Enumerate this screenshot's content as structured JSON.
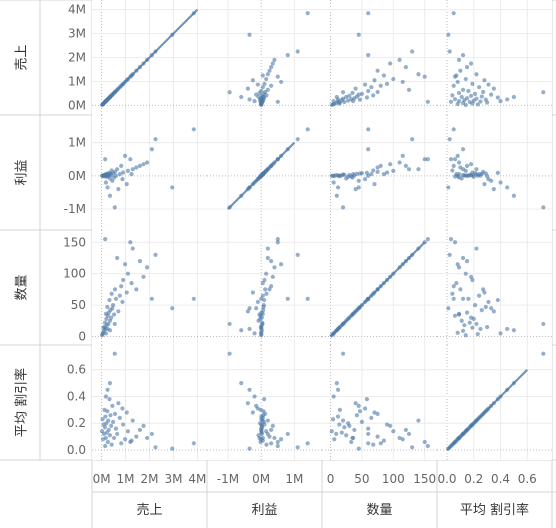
{
  "chart_data": {
    "type": "scatter",
    "subtype": "scatter-matrix",
    "title": "",
    "fields": [
      {
        "label": "売上",
        "ticks": [
          {
            "v": 0,
            "t": "0M"
          },
          {
            "v": 1000000,
            "t": "1M"
          },
          {
            "v": 2000000,
            "t": "2M"
          },
          {
            "v": 3000000,
            "t": "3M"
          },
          {
            "v": 4000000,
            "t": "4M"
          }
        ],
        "range": [
          -150000,
          4150000
        ]
      },
      {
        "label": "利益",
        "ticks": [
          {
            "v": -1000000,
            "t": "-1M"
          },
          {
            "v": 0,
            "t": "0M"
          },
          {
            "v": 1000000,
            "t": "1M"
          }
        ],
        "range": [
          -1450000,
          1650000
        ]
      },
      {
        "label": "数量",
        "ticks": [
          {
            "v": 0,
            "t": "0"
          },
          {
            "v": 50,
            "t": "50"
          },
          {
            "v": 100,
            "t": "100"
          },
          {
            "v": 150,
            "t": "150"
          }
        ],
        "range": [
          -4,
          160
        ]
      },
      {
        "label": "平均 割引率",
        "ticks": [
          {
            "v": 0.0,
            "t": "0.0"
          },
          {
            "v": 0.2,
            "t": "0.2"
          },
          {
            "v": 0.4,
            "t": "0.4"
          },
          {
            "v": 0.6,
            "t": "0.6"
          }
        ],
        "range": [
          -0.03,
          0.74
        ]
      }
    ],
    "points": [
      [
        3850000,
        1400000,
        60,
        0.05
      ],
      [
        2950000,
        -350000,
        45,
        0.01
      ],
      [
        2250000,
        1100000,
        130,
        0.02
      ],
      [
        2100000,
        800000,
        60,
        0.12
      ],
      [
        1900000,
        400000,
        110,
        0.09
      ],
      [
        1750000,
        350000,
        95,
        0.18
      ],
      [
        1600000,
        300000,
        120,
        0.15
      ],
      [
        1450000,
        250000,
        75,
        0.1
      ],
      [
        1300000,
        200000,
        140,
        0.22
      ],
      [
        1250000,
        50000,
        85,
        0.07
      ],
      [
        1100000,
        150000,
        100,
        0.14
      ],
      [
        1050000,
        -250000,
        70,
        0.28
      ],
      [
        980000,
        600000,
        115,
        0.08
      ],
      [
        900000,
        100000,
        90,
        0.19
      ],
      [
        870000,
        -100000,
        55,
        0.31
      ],
      [
        820000,
        300000,
        80,
        0.05
      ],
      [
        760000,
        50000,
        65,
        0.24
      ],
      [
        700000,
        -400000,
        40,
        0.35
      ],
      [
        650000,
        200000,
        125,
        0.12
      ],
      [
        600000,
        0,
        60,
        0.16
      ],
      [
        560000,
        120000,
        75,
        0.27
      ],
      [
        520000,
        -50000,
        35,
        0.09
      ],
      [
        480000,
        80000,
        50,
        0.21
      ],
      [
        450000,
        -150000,
        45,
        0.33
      ],
      [
        420000,
        160000,
        68,
        0.04
      ],
      [
        400000,
        20000,
        30,
        0.18
      ],
      [
        370000,
        60000,
        42,
        0.26
      ],
      [
        350000,
        -80000,
        25,
        0.11
      ],
      [
        330000,
        90000,
        58,
        0.38
      ],
      [
        300000,
        10000,
        38,
        0.15
      ],
      [
        280000,
        40000,
        20,
        0.22
      ],
      [
        260000,
        -20000,
        33,
        0.06
      ],
      [
        240000,
        70000,
        47,
        0.29
      ],
      [
        220000,
        15000,
        18,
        0.13
      ],
      [
        200000,
        -30000,
        28,
        0.2
      ],
      [
        180000,
        50000,
        36,
        0.09
      ],
      [
        160000,
        5000,
        12,
        0.25
      ],
      [
        140000,
        30000,
        22,
        0.17
      ],
      [
        120000,
        -10000,
        15,
        0.3
      ],
      [
        100000,
        20000,
        9,
        0.12
      ],
      [
        80000,
        8000,
        14,
        0.19
      ],
      [
        60000,
        -5000,
        6,
        0.08
      ],
      [
        40000,
        4000,
        4,
        0.23
      ],
      [
        20000,
        1000,
        2,
        0.14
      ],
      [
        1200000,
        500000,
        150,
        0.06
      ],
      [
        550000,
        -950000,
        20,
        0.72
      ],
      [
        350000,
        -600000,
        10,
        0.5
      ],
      [
        250000,
        -350000,
        12,
        0.45
      ],
      [
        180000,
        -200000,
        5,
        0.4
      ],
      [
        150000,
        500000,
        155,
        0.03
      ]
    ]
  }
}
